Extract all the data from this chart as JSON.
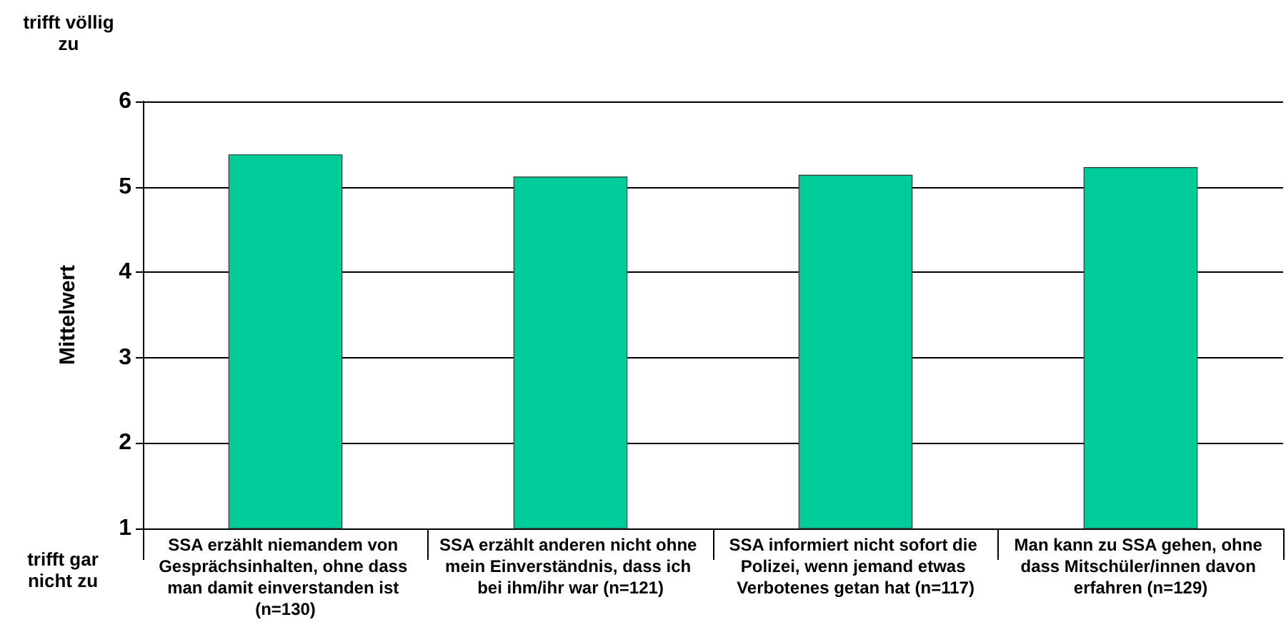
{
  "chart_data": {
    "type": "bar",
    "ylabel": "Mittelwert",
    "categories": [
      "SSA erzählt niemandem von Gesprächsinhalten, ohne dass man damit einverstanden ist (n=130)",
      "SSA erzählt anderen nicht ohne mein Einverständnis, dass ich bei ihm/ihr war (n=121)",
      "SSA informiert nicht sofort die Polizei, wenn jemand etwas Verbotenes getan hat (n=117)",
      "Man kann zu SSA gehen, ohne dass Mitschüler/innen davon erfahren (n=129)"
    ],
    "values": [
      5.38,
      5.12,
      5.14,
      5.23
    ],
    "color": "#00cc99",
    "ylim": [
      1,
      6
    ],
    "yticks": [
      1,
      2,
      3,
      4,
      5,
      6
    ],
    "grid": "y",
    "annotations": [
      "trifft völlig zu",
      "trifft gar nicht zu"
    ]
  }
}
